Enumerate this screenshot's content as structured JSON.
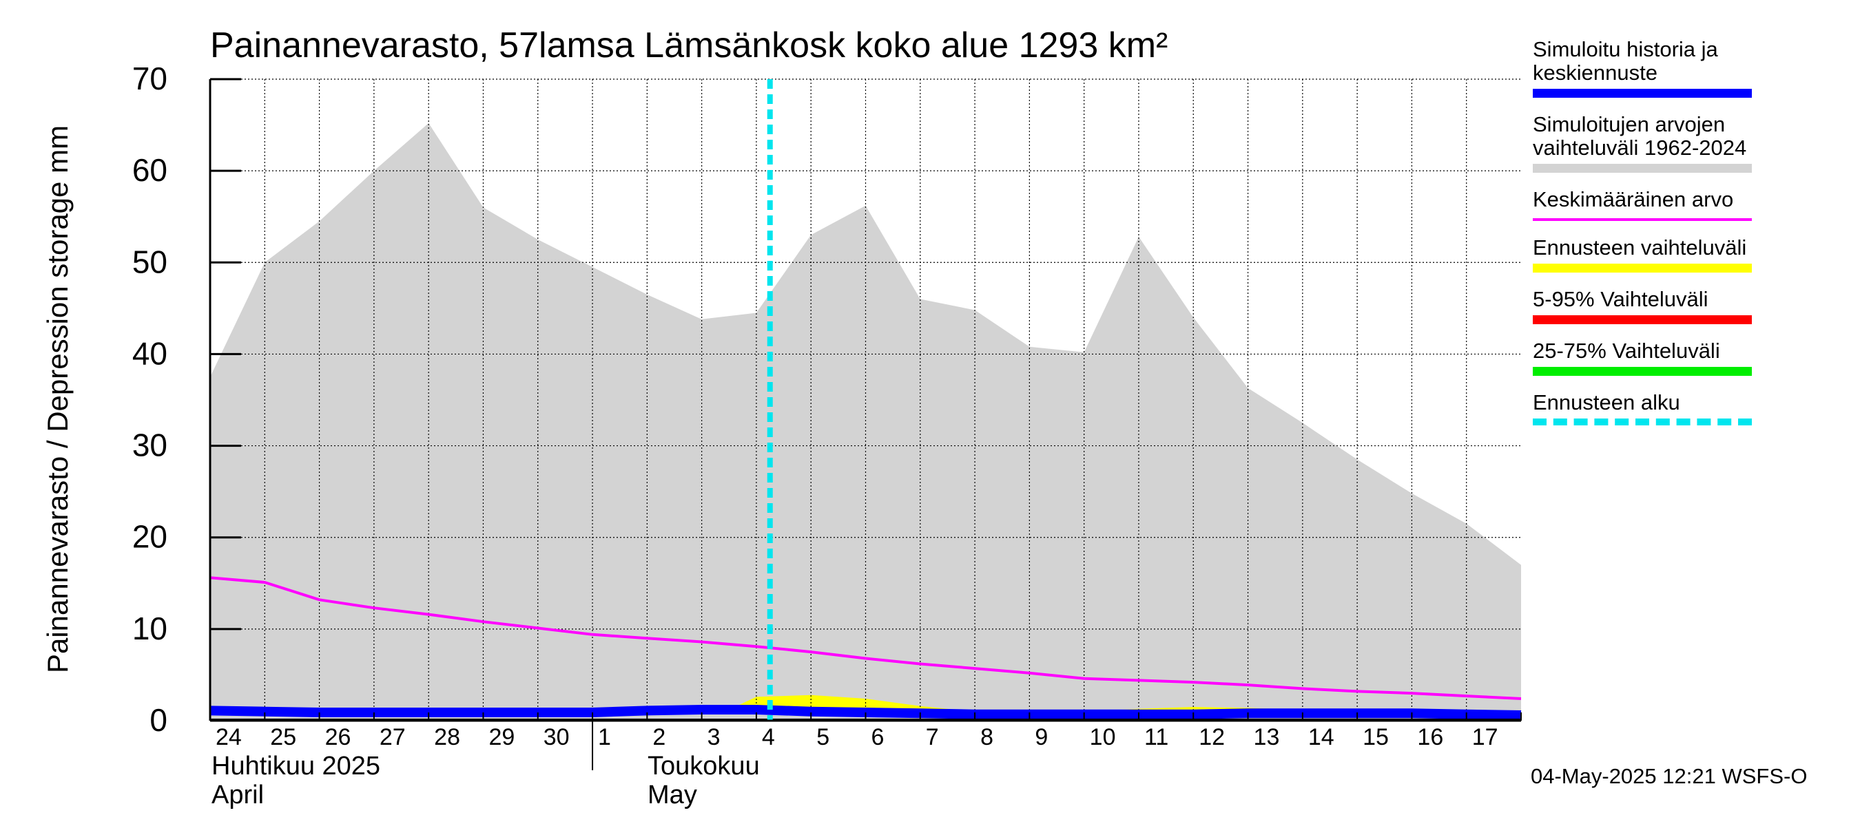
{
  "chart_data": {
    "type": "area",
    "title": "Painannevarasto, 57lamsa Lämsänkosk koko alue 1293 km²",
    "ylabel": "Painannevarasto / Depression storage    mm",
    "ylim": [
      0,
      70
    ],
    "yticks": [
      0,
      10,
      20,
      30,
      40,
      50,
      60,
      70
    ],
    "x_day_labels": [
      "24",
      "25",
      "26",
      "27",
      "28",
      "29",
      "30",
      "1",
      "2",
      "3",
      "4",
      "5",
      "6",
      "7",
      "8",
      "9",
      "10",
      "11",
      "12",
      "13",
      "14",
      "15",
      "16",
      "17"
    ],
    "month_labels": [
      {
        "fi": "Huhtikuu  2025",
        "en": "April"
      },
      {
        "fi": "Toukokuu",
        "en": "May"
      }
    ],
    "x_index_range": [
      0,
      24
    ],
    "forecast_start_index": 10.25,
    "series": [
      {
        "name": "Simuloitujen arvojen vaihteluväli 1962-2024",
        "kind": "band",
        "color": "#d3d3d3",
        "upper_x": [
          0,
          1,
          2,
          3,
          4,
          5,
          6,
          7,
          8,
          9,
          10,
          11,
          12,
          13,
          14,
          15,
          16,
          17,
          18,
          19,
          20,
          21,
          22,
          23,
          24
        ],
        "upper": [
          37.5,
          50,
          54.5,
          60,
          65.2,
          56,
          52.5,
          49.5,
          46.5,
          43.8,
          44.5,
          53,
          56.2,
          46,
          44.8,
          40.8,
          40.2,
          52.8,
          44,
          36.3,
          32.5,
          28.5,
          24.8,
          21.5,
          17
        ],
        "lower": [
          0,
          0,
          0,
          0,
          0,
          0,
          0,
          0,
          0,
          0,
          0,
          0,
          0,
          0,
          0,
          0,
          0,
          0,
          0,
          0,
          0,
          0,
          0,
          0,
          0
        ]
      },
      {
        "name": "Keskimääräinen arvo",
        "kind": "line",
        "color": "#ff00ff",
        "x": [
          0,
          1,
          2,
          3,
          4,
          5,
          6,
          7,
          8,
          9,
          10,
          11,
          12,
          13,
          14,
          15,
          16,
          17,
          18,
          19,
          20,
          21,
          22,
          23,
          24
        ],
        "values": [
          15.6,
          15.1,
          13.2,
          12.3,
          11.6,
          10.8,
          10.1,
          9.4,
          9.0,
          8.6,
          8.1,
          7.5,
          6.8,
          6.2,
          5.7,
          5.2,
          4.6,
          4.4,
          4.2,
          3.9,
          3.5,
          3.2,
          3.0,
          2.7,
          2.4
        ]
      },
      {
        "name": "Ennusteen vaihteluväli",
        "kind": "band",
        "color": "#ffff00",
        "x": [
          9.5,
          10,
          11,
          12,
          13,
          14,
          15,
          16,
          17,
          18,
          19,
          20,
          21,
          22,
          23,
          24
        ],
        "upper": [
          1.2,
          2.6,
          2.8,
          2.4,
          1.6,
          1.0,
          0.9,
          1.0,
          1.3,
          1.5,
          1.4,
          1.2,
          1.1,
          1.0,
          1.0,
          0.9
        ],
        "lower": [
          1.0,
          0.9,
          0.8,
          0.7,
          0.6,
          0.5,
          0.4,
          0.4,
          0.5,
          0.6,
          0.6,
          0.6,
          0.6,
          0.5,
          0.5,
          0.5
        ]
      },
      {
        "name": "Simuloitu historia ja keskiennuste",
        "kind": "line",
        "color": "#0000ff",
        "x": [
          0,
          1,
          2,
          3,
          4,
          5,
          6,
          7,
          8,
          9,
          10,
          11,
          12,
          13,
          14,
          15,
          16,
          17,
          18,
          19,
          20,
          21,
          22,
          23,
          24
        ],
        "values": [
          1.1,
          1.0,
          0.9,
          0.9,
          0.9,
          0.9,
          0.9,
          0.9,
          1.1,
          1.2,
          1.2,
          1.0,
          0.9,
          0.8,
          0.7,
          0.7,
          0.7,
          0.7,
          0.7,
          0.8,
          0.8,
          0.8,
          0.8,
          0.7,
          0.6
        ]
      }
    ]
  },
  "legend": [
    {
      "label": "Simuloitu historia ja\nkeskiennuste",
      "color": "#0000ff",
      "style": "solid"
    },
    {
      "label": "Simuloitujen arvojen\nvaihteluväli 1962-2024",
      "color": "#d3d3d3",
      "style": "solid"
    },
    {
      "label": "Keskimääräinen arvo",
      "color": "#ff00ff",
      "style": "thin"
    },
    {
      "label": "Ennusteen vaihteluväli",
      "color": "#ffff00",
      "style": "solid"
    },
    {
      "label": "5-95% Vaihteluväli",
      "color": "#ff0000",
      "style": "solid"
    },
    {
      "label": "25-75% Vaihteluväli",
      "color": "#00ee00",
      "style": "solid"
    },
    {
      "label": "Ennusteen alku",
      "color": "#00e5ee",
      "style": "dashed"
    }
  ],
  "footer": "04-May-2025 12:21 WSFS-O"
}
